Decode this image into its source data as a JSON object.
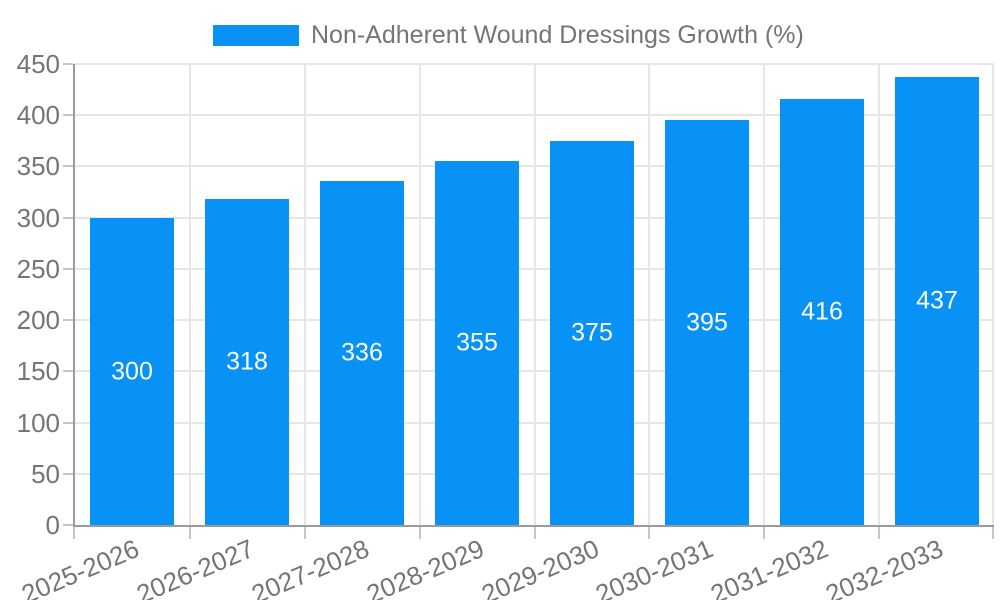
{
  "chart_data": {
    "type": "bar",
    "title": "Non-Adherent Wound Dressings Growth (%)",
    "categories": [
      "2025-2026",
      "2026-2027",
      "2027-2028",
      "2028-2029",
      "2029-2030",
      "2030-2031",
      "2031-2032",
      "2032-2033"
    ],
    "values": [
      300,
      318,
      336,
      355,
      375,
      395,
      416,
      437
    ],
    "xlabel": "",
    "ylabel": "",
    "ylim": [
      0,
      450
    ],
    "ytick_step": 50,
    "ytick_labels": [
      "0",
      "50",
      "100",
      "150",
      "200",
      "250",
      "300",
      "350",
      "400",
      "450"
    ],
    "grid": true,
    "legend_position": "top",
    "x_label_rotation_deg": -23,
    "colors": {
      "bar": "#0892f5",
      "bar_value_label": "#ffffff",
      "axis_line": "#9b9b9b",
      "gridline": "#e6e6e6",
      "tick": "#c6c6c6",
      "tick_label": "#757575",
      "legend_text": "#757575"
    }
  }
}
